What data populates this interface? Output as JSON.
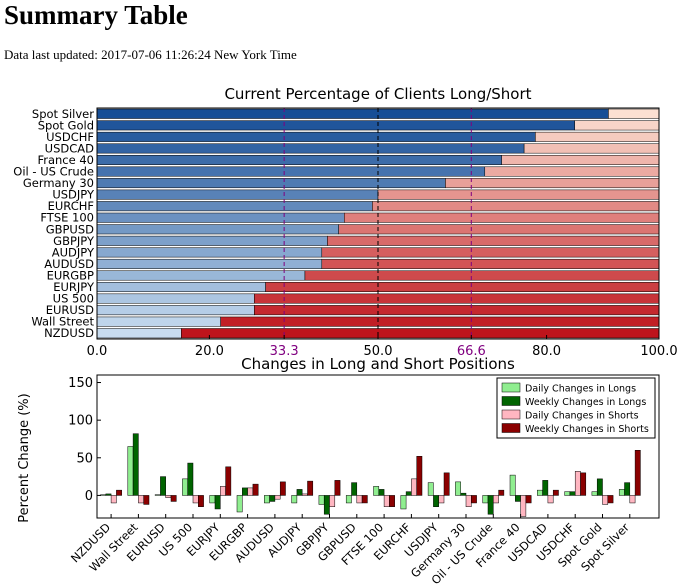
{
  "page": {
    "title": "Summary Table",
    "updated_label": "Data last updated:",
    "updated_value": "2017-07-06 11:26:24 New York Time"
  },
  "chart_data": [
    {
      "type": "bar",
      "orientation": "horizontal",
      "stacked": true,
      "title": "Current Percentage of Clients Long/Short",
      "xlim": [
        0,
        100
      ],
      "xticks": [
        "0.0",
        "20.0",
        "33.3",
        "50.0",
        "66.6",
        "80.0",
        "100.0"
      ],
      "reference_lines": [
        33.3,
        50.0,
        66.6
      ],
      "categories": [
        "Spot Silver",
        "Spot Gold",
        "USDCHF",
        "USDCAD",
        "France 40",
        "Oil - US Crude",
        "Germany 30",
        "USDJPY",
        "EURCHF",
        "FTSE 100",
        "GBPUSD",
        "GBPJPY",
        "AUDJPY",
        "AUDUSD",
        "EURGBP",
        "EURJPY",
        "US 500",
        "EURUSD",
        "Wall Street",
        "NZDUSD"
      ],
      "long_percent": [
        91,
        85,
        78,
        76,
        72,
        69,
        62,
        50,
        49,
        44,
        43,
        41,
        40,
        40,
        37,
        30,
        28,
        28,
        22,
        15
      ]
    },
    {
      "type": "bar",
      "title": "Changes in Long and Short Positions",
      "ylabel": "Percent Change (%)",
      "ylim": [
        -30,
        160
      ],
      "yticks": [
        "0",
        "50",
        "100",
        "150"
      ],
      "legend_position": "top-right",
      "categories": [
        "NZDUSD",
        "Wall Street",
        "EURUSD",
        "US 500",
        "EURJPY",
        "EURGBP",
        "AUDUSD",
        "AUDJPY",
        "GBPJPY",
        "GBPUSD",
        "FTSE 100",
        "EURCHF",
        "USDJPY",
        "Germany 30",
        "Oil - US Crude",
        "France 40",
        "USDCAD",
        "USDCHF",
        "Spot Gold",
        "Spot Silver"
      ],
      "series": [
        {
          "name": "Daily Changes in Longs",
          "color": "#90ee90",
          "values": [
            1,
            65,
            1,
            22,
            -10,
            -22,
            -10,
            -10,
            -12,
            -10,
            12,
            -18,
            17,
            18,
            -10,
            27,
            7,
            5,
            5,
            8
          ]
        },
        {
          "name": "Weekly Changes in Longs",
          "color": "#006400",
          "values": [
            2,
            82,
            25,
            43,
            -18,
            10,
            -8,
            8,
            -25,
            17,
            8,
            5,
            -15,
            3,
            -25,
            -8,
            20,
            5,
            22,
            17
          ]
        },
        {
          "name": "Daily Changes in Shorts",
          "color": "#ffb6c1",
          "values": [
            -10,
            -10,
            -3,
            -10,
            12,
            10,
            -5,
            2,
            -15,
            -10,
            -15,
            22,
            -10,
            -15,
            -10,
            -28,
            -10,
            32,
            -12,
            -10
          ]
        },
        {
          "name": "Weekly Changes in Shorts",
          "color": "#8b0000",
          "values": [
            7,
            -12,
            -8,
            -15,
            38,
            15,
            18,
            19,
            20,
            -10,
            -15,
            52,
            30,
            -10,
            7,
            -10,
            7,
            30,
            -10,
            60
          ]
        }
      ]
    }
  ]
}
